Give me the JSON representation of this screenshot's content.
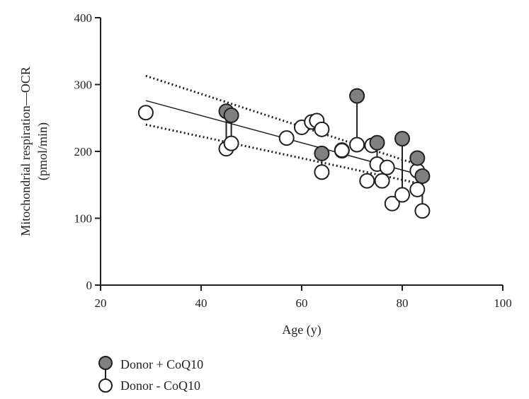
{
  "chart_data": {
    "type": "scatter",
    "title": "",
    "xlabel": "Age (y)",
    "ylabel": "Mitochondrial respiration—OCR",
    "ylabel_unit": "(pmol/min)",
    "xlim": [
      20,
      100
    ],
    "ylim": [
      0,
      400
    ],
    "xticks": [
      "20",
      "40",
      "60",
      "80",
      "100"
    ],
    "yticks": [
      "0",
      "100",
      "200",
      "300",
      "400"
    ],
    "grid": false,
    "legend_position": "bottom-left",
    "series": [
      {
        "name": "Donor + CoQ10",
        "marker": "filled-circle",
        "color": "#808080",
        "points": [
          {
            "x": 45,
            "y": 260
          },
          {
            "x": 46,
            "y": 254
          },
          {
            "x": 64,
            "y": 197
          },
          {
            "x": 68,
            "y": 202
          },
          {
            "x": 71,
            "y": 283
          },
          {
            "x": 75,
            "y": 213
          },
          {
            "x": 80,
            "y": 219
          },
          {
            "x": 83,
            "y": 190
          },
          {
            "x": 84,
            "y": 163
          }
        ]
      },
      {
        "name": "Donor - CoQ10",
        "marker": "open-circle",
        "color": "#ffffff",
        "points": [
          {
            "x": 29,
            "y": 258
          },
          {
            "x": 45,
            "y": 204
          },
          {
            "x": 46,
            "y": 212
          },
          {
            "x": 57,
            "y": 220
          },
          {
            "x": 60,
            "y": 236
          },
          {
            "x": 62,
            "y": 244
          },
          {
            "x": 63,
            "y": 246
          },
          {
            "x": 64,
            "y": 233
          },
          {
            "x": 64,
            "y": 169
          },
          {
            "x": 68,
            "y": 201
          },
          {
            "x": 71,
            "y": 210
          },
          {
            "x": 73,
            "y": 156
          },
          {
            "x": 74,
            "y": 209
          },
          {
            "x": 75,
            "y": 181
          },
          {
            "x": 76,
            "y": 156
          },
          {
            "x": 77,
            "y": 176
          },
          {
            "x": 78,
            "y": 122
          },
          {
            "x": 80,
            "y": 135
          },
          {
            "x": 83,
            "y": 171
          },
          {
            "x": 83,
            "y": 143
          },
          {
            "x": 84,
            "y": 111
          }
        ]
      }
    ],
    "paired_connections": [
      {
        "x": 45,
        "plus": 260,
        "minus": 204
      },
      {
        "x": 46,
        "plus": 254,
        "minus": 212
      },
      {
        "x": 64,
        "plus": 197,
        "minus": 169
      },
      {
        "x": 71,
        "plus": 283,
        "minus": 210
      },
      {
        "x": 75,
        "plus": 213,
        "minus": 181
      },
      {
        "x": 80,
        "plus": 219,
        "minus": 135
      },
      {
        "x": 83,
        "plus": 190,
        "minus": 143
      },
      {
        "x": 84,
        "plus": 163,
        "minus": 111
      }
    ],
    "regression": {
      "fit": {
        "x": [
          29,
          84
        ],
        "y": [
          276,
          164
        ]
      },
      "ci_upper": {
        "x": [
          29,
          84
        ],
        "y": [
          313,
          178
        ]
      },
      "ci_lower": {
        "x": [
          29,
          84
        ],
        "y": [
          240,
          151
        ]
      }
    }
  },
  "legend": {
    "items": [
      {
        "label": "Donor + CoQ10",
        "color": "#808080"
      },
      {
        "label": "Donor - CoQ10",
        "color": "#ffffff"
      }
    ]
  }
}
